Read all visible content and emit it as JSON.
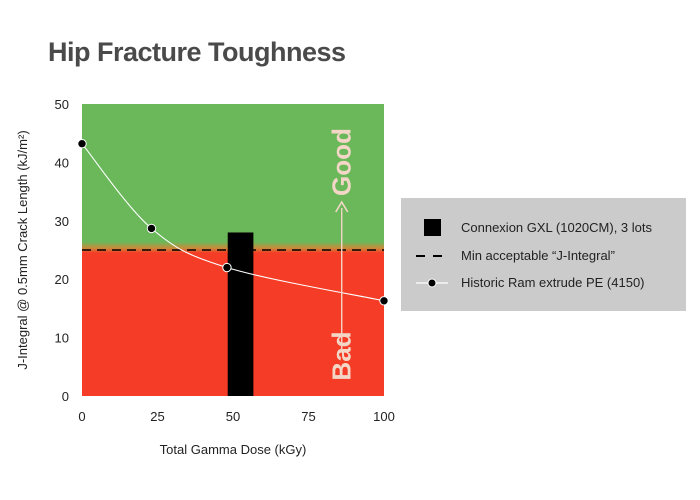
{
  "chart_data": {
    "type": "line",
    "title": "Hip Fracture Toughness",
    "xlabel": "Total Gamma Dose (kGy)",
    "ylabel": "J-Integral @ 0.5mm Crack Length (kJ/m²)",
    "xlim": [
      0,
      100
    ],
    "ylim": [
      0,
      50
    ],
    "x_ticks": [
      0,
      25,
      50,
      75,
      100
    ],
    "y_ticks": [
      0,
      10,
      20,
      30,
      40,
      50
    ],
    "grid": false,
    "legend_position": "right",
    "bar": {
      "name": "Connexion GXL (1020CM), 3 lots",
      "x": 52.5,
      "value": 28,
      "color": "#000000"
    },
    "threshold": {
      "name": "Min acceptable “J-Integral”",
      "value": 25,
      "color": "#000000"
    },
    "series": [
      {
        "name": "Historic Ram extrude PE (4150)",
        "x": [
          0,
          23,
          48,
          100
        ],
        "y": [
          43.2,
          28.7,
          22,
          16.3
        ],
        "color": "#ffffff",
        "marker_color": "#000000"
      }
    ],
    "regions": {
      "good_color": "#6ab85a",
      "bad_color": "#f53c26"
    },
    "annotations": {
      "good": "Good",
      "bad": "Bad",
      "color": "#f4d6c7"
    }
  }
}
